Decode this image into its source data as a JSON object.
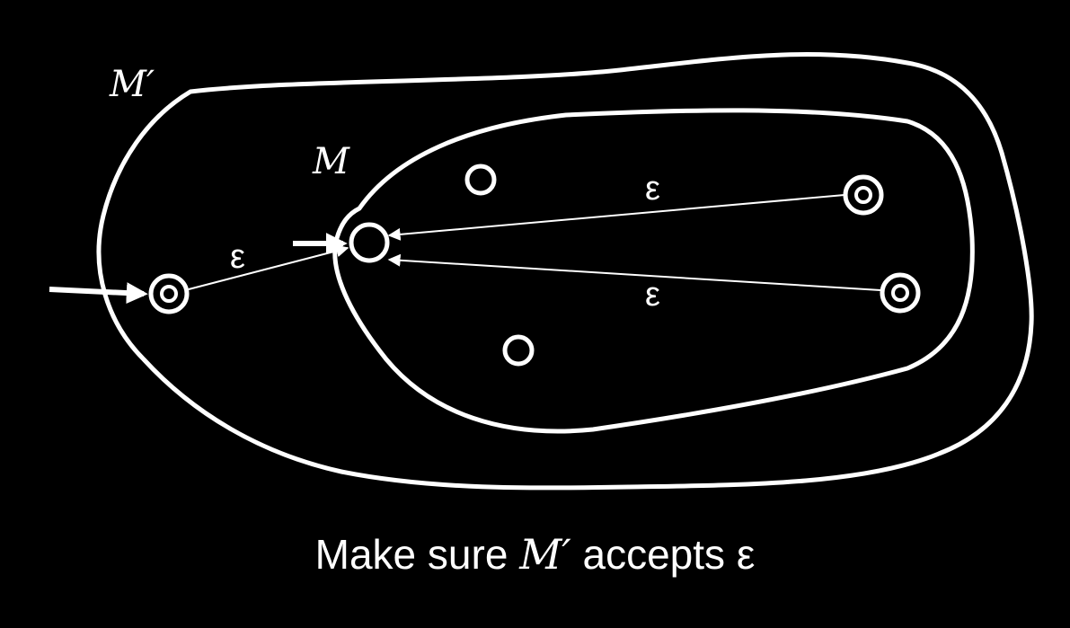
{
  "colors": {
    "background": "#000000",
    "foreground": "#ffffff"
  },
  "labels": {
    "outer_machine": "M′",
    "inner_machine": "M",
    "epsilon_new_start": "ε",
    "epsilon_accept_top": "ε",
    "epsilon_accept_bottom": "ε"
  },
  "caption": {
    "prefix": "Make sure ",
    "machine": "M′",
    "suffix": " accepts ε"
  }
}
